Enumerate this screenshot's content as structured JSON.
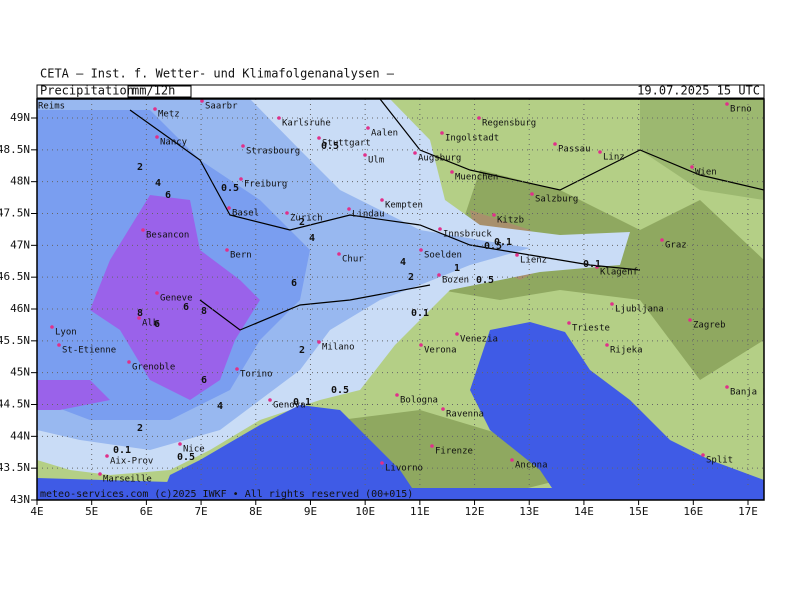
{
  "header": {
    "title": "CETA — Inst. f. Wetter- und Klimafolgenanalysen —",
    "parameter": "Precipitation",
    "unit": "mm/12h",
    "valid_time": "19.07.2025 15 UTC"
  },
  "map": {
    "lat_ticks": [
      {
        "value": 49,
        "label": "49N"
      },
      {
        "value": 48.5,
        "label": "48.5N"
      },
      {
        "value": 48,
        "label": "48N"
      },
      {
        "value": 47.5,
        "label": "47.5N"
      },
      {
        "value": 47,
        "label": "47N"
      },
      {
        "value": 46.5,
        "label": "46.5N"
      },
      {
        "value": 46,
        "label": "46N"
      },
      {
        "value": 45.5,
        "label": "45.5N"
      },
      {
        "value": 45,
        "label": "45N"
      },
      {
        "value": 44.5,
        "label": "44.5N"
      },
      {
        "value": 44,
        "label": "44N"
      },
      {
        "value": 43.5,
        "label": "43.5N"
      },
      {
        "value": 43,
        "label": "43N"
      }
    ],
    "lon_ticks": [
      {
        "value": 4,
        "label": "4E"
      },
      {
        "value": 5,
        "label": "5E"
      },
      {
        "value": 6,
        "label": "6E"
      },
      {
        "value": 7,
        "label": "7E"
      },
      {
        "value": 8,
        "label": "8E"
      },
      {
        "value": 9,
        "label": "9E"
      },
      {
        "value": 10,
        "label": "10E"
      },
      {
        "value": 11,
        "label": "11E"
      },
      {
        "value": 12,
        "label": "12E"
      },
      {
        "value": 13,
        "label": "13E"
      },
      {
        "value": 14,
        "label": "14E"
      },
      {
        "value": 15,
        "label": "15E"
      },
      {
        "value": 16,
        "label": "16E"
      },
      {
        "value": 17,
        "label": "17E"
      }
    ],
    "cities": [
      "Reims",
      "Metz",
      "Saarbr",
      "Karlsruhe",
      "Stuttgart",
      "Aalen",
      "Regensburg",
      "Ingolstadt",
      "Nancy",
      "Strasbourg",
      "Ulm",
      "Augsburg",
      "Passau",
      "Linz",
      "Wien",
      "Brno",
      "Muenchen",
      "Freiburg",
      "Salzburg",
      "Basel",
      "Zurich",
      "Lindau",
      "Kempten",
      "Kitzb",
      "Innsbruck",
      "Graz",
      "Besancon",
      "Bern",
      "Chur",
      "Soelden",
      "Lienz",
      "Klagenf",
      "Bozen",
      "Geneve",
      "Ljubljana",
      "Zagreb",
      "Lyon",
      "Alb",
      "Trieste",
      "St-Etienne",
      "Milano",
      "Verona",
      "Venezia",
      "Rijeka",
      "Grenoble",
      "Torino",
      "Genova",
      "Bologna",
      "Ravenna",
      "Banja Luka",
      "Nice",
      "Aix-Prov",
      "Firenze",
      "Ancona",
      "Split",
      "Livorno",
      "Marseille"
    ],
    "contour_labels": [
      2,
      4,
      6,
      0.5,
      0.5,
      2,
      4,
      4,
      2,
      1,
      0.5,
      0.1,
      0.5,
      0.1,
      8,
      6,
      6,
      8,
      6,
      2,
      6,
      4,
      0.5,
      0.1,
      2,
      0.1,
      0.5,
      0.1
    ]
  },
  "footer": "meteo-services.com (c)2025 IWKF • All rights reserved (00+015)"
}
